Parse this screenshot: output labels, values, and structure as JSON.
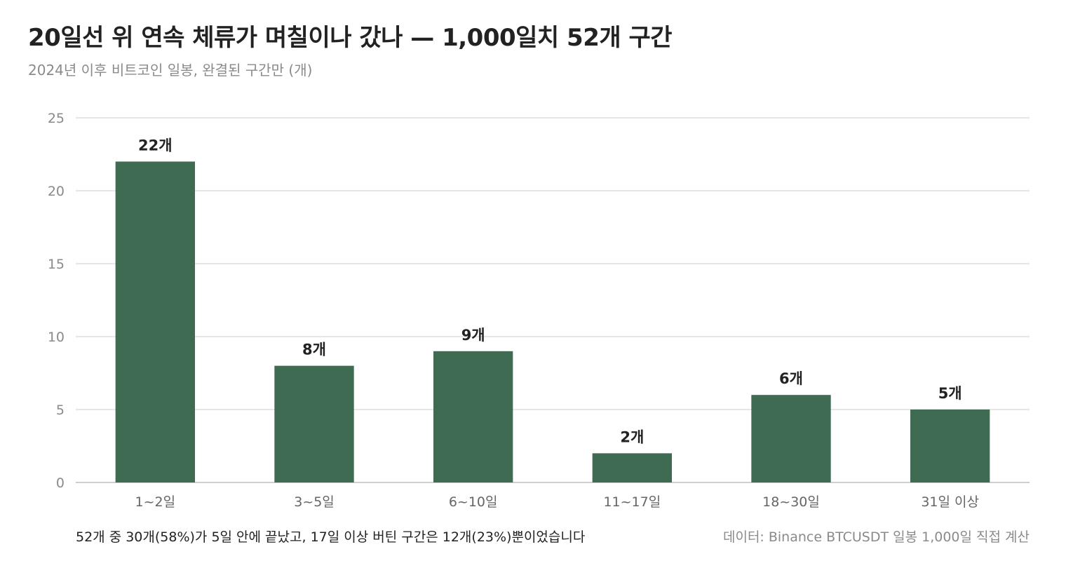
{
  "header": {
    "title": "20일선 위 연속 체류가 며칠이나 갔나 — 1,000일치 52개 구간",
    "subtitle": "2024년 이후 비트코인 일봉, 완결된 구간만 (개)"
  },
  "footer": {
    "summary": "52개 중 30개(58%)가 5일 안에 끝났고, 17일 이상 버틴 구간은 12개(23%)뿐이었습니다",
    "source": "데이터: Binance BTCUSDT 일봉 1,000일 직접 계산"
  },
  "colors": {
    "bar": "#3e6b52",
    "grid": "#dedede",
    "axis": "#bdbdbd",
    "tick_text": "#8a8a8a",
    "value_label": "#222222",
    "category_text": "#666666"
  },
  "chart_data": {
    "type": "bar",
    "categories": [
      "1~2일",
      "3~5일",
      "6~10일",
      "11~17일",
      "18~30일",
      "31일 이상"
    ],
    "values": [
      22,
      8,
      9,
      2,
      6,
      5
    ],
    "value_labels": [
      "22개",
      "8개",
      "9개",
      "2개",
      "6개",
      "5개"
    ],
    "y_ticks": [
      0,
      5,
      10,
      15,
      20,
      25
    ],
    "ylim": [
      0,
      25
    ],
    "grid": true,
    "legend": "none"
  }
}
